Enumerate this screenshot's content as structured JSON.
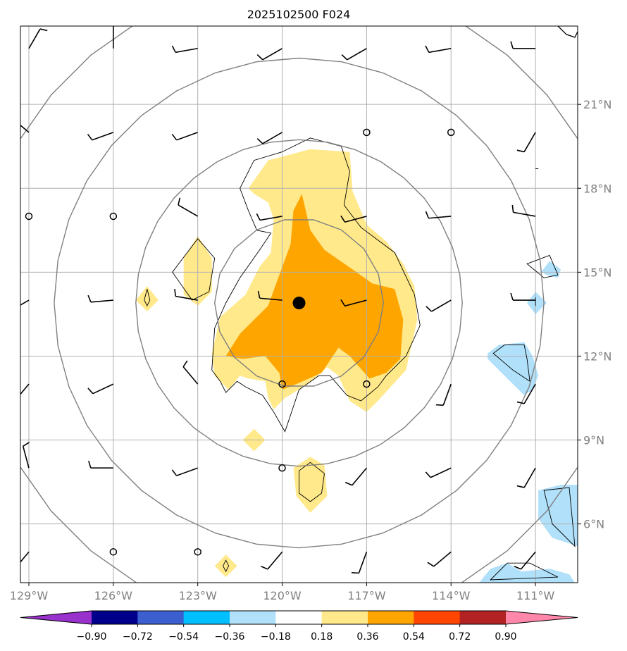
{
  "chart_data": {
    "type": "heatmap",
    "title": "2025102500 F024",
    "xlabel": "",
    "ylabel": "",
    "xlim": [
      -129.3,
      -109.5
    ],
    "ylim": [
      3.9,
      23.8
    ],
    "x_ticks": [
      -129,
      -126,
      -123,
      -120,
      -117,
      -114,
      -111
    ],
    "x_tick_labels": [
      "129°W",
      "126°W",
      "123°W",
      "120°W",
      "117°W",
      "114°W",
      "111°W"
    ],
    "y_ticks": [
      6,
      9,
      12,
      15,
      18,
      21
    ],
    "y_tick_labels": [
      "6°N",
      "9°N",
      "12°N",
      "15°N",
      "18°N",
      "21°N"
    ],
    "grid": true,
    "center": {
      "lon": -119.4,
      "lat": 13.9
    },
    "range_ring_radii_deg": [
      3,
      5.8,
      8.7,
      11.5
    ],
    "colorbar": {
      "levels": [
        -0.9,
        -0.72,
        -0.54,
        -0.36,
        -0.18,
        0.18,
        0.36,
        0.54,
        0.72,
        0.9
      ],
      "labels": [
        "−0.90",
        "−0.72",
        "−0.54",
        "−0.36",
        "−0.18",
        "0.18",
        "0.36",
        "0.54",
        "0.72",
        "0.90"
      ],
      "colors": [
        "#9932cc",
        "#00008b",
        "#3b5fcf",
        "#00bfff",
        "#b0e0fa",
        "#ffffff",
        "#ffe98a",
        "#ffa500",
        "#ff4500",
        "#b22222",
        "#ff88aa"
      ],
      "extend": "both"
    },
    "filled_regions": [
      {
        "level": 0.18,
        "color": "#ffe98a",
        "points": [
          [
            -121.2,
            18
          ],
          [
            -120.5,
            19
          ],
          [
            -119,
            19.4
          ],
          [
            -117.6,
            19.3
          ],
          [
            -117.5,
            17.9
          ],
          [
            -117,
            16.7
          ],
          [
            -116.3,
            16.1
          ],
          [
            -115.7,
            15.3
          ],
          [
            -115.3,
            14.5
          ],
          [
            -115.2,
            13.3
          ],
          [
            -115.6,
            11.5
          ],
          [
            -116.6,
            10.4
          ],
          [
            -117,
            10
          ],
          [
            -117.6,
            10.4
          ],
          [
            -118,
            11.3
          ],
          [
            -118.4,
            11.6
          ],
          [
            -119.1,
            11
          ],
          [
            -119.9,
            10.5
          ],
          [
            -120.3,
            10.1
          ],
          [
            -120.5,
            10.5
          ],
          [
            -120.6,
            11.1
          ],
          [
            -121.2,
            11.2
          ],
          [
            -121.5,
            11.3
          ],
          [
            -121.9,
            10.8
          ],
          [
            -122.4,
            11.3
          ],
          [
            -122.5,
            12.1
          ],
          [
            -122.2,
            13.4
          ],
          [
            -121.3,
            14.2
          ],
          [
            -120.8,
            15.2
          ],
          [
            -120.4,
            15.7
          ],
          [
            -120.3,
            16.9
          ],
          [
            -120.5,
            17.5
          ],
          [
            -121,
            17.8
          ]
        ]
      },
      {
        "level": 0.18,
        "color": "#ffe98a",
        "points": [
          [
            -123,
            16.3
          ],
          [
            -122.5,
            15.5
          ],
          [
            -122.5,
            14.3
          ],
          [
            -123,
            13.8
          ],
          [
            -123.5,
            14.2
          ],
          [
            -123.5,
            15.5
          ]
        ]
      },
      {
        "level": 0.18,
        "color": "#ffe98a",
        "points": [
          [
            -119,
            8.4
          ],
          [
            -118.5,
            8.1
          ],
          [
            -118.4,
            7
          ],
          [
            -119,
            6.4
          ],
          [
            -119.5,
            7
          ],
          [
            -119.6,
            8
          ]
        ]
      },
      {
        "level": 0.18,
        "color": "#ffe98a",
        "points": [
          [
            -121,
            9.4
          ],
          [
            -120.6,
            9
          ],
          [
            -121,
            8.6
          ],
          [
            -121.4,
            9
          ]
        ]
      },
      {
        "level": 0.18,
        "color": "#ffe98a",
        "points": [
          [
            -124.8,
            14.5
          ],
          [
            -124.4,
            14
          ],
          [
            -124.8,
            13.6
          ],
          [
            -125.2,
            14
          ]
        ]
      },
      {
        "level": 0.18,
        "color": "#ffe98a",
        "points": [
          [
            -122,
            4.9
          ],
          [
            -121.6,
            4.5
          ],
          [
            -122,
            4.1
          ],
          [
            -122.4,
            4.5
          ]
        ]
      },
      {
        "level": 0.36,
        "color": "#ffa500",
        "points": [
          [
            -119.3,
            17.8
          ],
          [
            -119,
            16.5
          ],
          [
            -118.5,
            15.8
          ],
          [
            -117.5,
            15.1
          ],
          [
            -116.8,
            14.6
          ],
          [
            -116,
            14.4
          ],
          [
            -115.7,
            13.3
          ],
          [
            -115.8,
            11.9
          ],
          [
            -116.3,
            11.4
          ],
          [
            -116.9,
            11.2
          ],
          [
            -117.6,
            12
          ],
          [
            -118,
            12.3
          ],
          [
            -118.6,
            11.4
          ],
          [
            -119.5,
            11
          ],
          [
            -120,
            10.8
          ],
          [
            -120.1,
            11.4
          ],
          [
            -120.6,
            12
          ],
          [
            -121.4,
            11.9
          ],
          [
            -122,
            12
          ],
          [
            -121.5,
            12.8
          ],
          [
            -120.5,
            13.8
          ],
          [
            -120.1,
            14.9
          ],
          [
            -119.7,
            16
          ],
          [
            -119.6,
            17.2
          ]
        ]
      }
    ],
    "contour_lines": [
      [
        [
          -121.5,
          18
        ],
        [
          -121,
          19
        ],
        [
          -120,
          19.3
        ],
        [
          -119,
          19.8
        ],
        [
          -117.9,
          19.5
        ],
        [
          -117.6,
          18.6
        ],
        [
          -117.8,
          17.4
        ],
        [
          -117.2,
          16.6
        ],
        [
          -116,
          15.7
        ],
        [
          -115.3,
          14.2
        ],
        [
          -115.1,
          13.1
        ],
        [
          -115.6,
          12
        ],
        [
          -116.3,
          11.3
        ],
        [
          -116.6,
          10.9
        ],
        [
          -117.2,
          10.4
        ],
        [
          -117.7,
          10.6
        ],
        [
          -118.3,
          11.3
        ],
        [
          -118.7,
          11.3
        ],
        [
          -119.4,
          10.8
        ],
        [
          -119.9,
          9.3
        ],
        [
          -120.3,
          10
        ],
        [
          -120.7,
          10.6
        ],
        [
          -121.3,
          10.9
        ],
        [
          -121.6,
          11.1
        ],
        [
          -122,
          10.7
        ],
        [
          -122.2,
          11.1
        ],
        [
          -122.5,
          11.5
        ],
        [
          -122.4,
          13
        ],
        [
          -122,
          13.9
        ],
        [
          -121.5,
          14.8
        ],
        [
          -120.8,
          15.8
        ],
        [
          -120.4,
          16.4
        ],
        [
          -120.9,
          16.5
        ],
        [
          -121.2,
          17.2
        ]
      ],
      [
        [
          -123,
          16.2
        ],
        [
          -122.4,
          15.5
        ],
        [
          -122.6,
          14.3
        ],
        [
          -123.2,
          14
        ],
        [
          -123.9,
          15
        ]
      ],
      [
        [
          -119,
          8.2
        ],
        [
          -118.5,
          7.8
        ],
        [
          -118.6,
          7.1
        ],
        [
          -119,
          6.8
        ],
        [
          -119.4,
          7.1
        ],
        [
          -119.4,
          7.9
        ]
      ],
      [
        [
          -124.8,
          14.4
        ],
        [
          -124.7,
          14
        ],
        [
          -124.8,
          13.8
        ],
        [
          -124.9,
          14
        ]
      ],
      [
        [
          -122,
          4.7
        ],
        [
          -121.9,
          4.5
        ],
        [
          -122,
          4.3
        ],
        [
          -122.1,
          4.5
        ]
      ],
      [
        [
          -112.1,
          12.4
        ],
        [
          -111.4,
          12.4
        ],
        [
          -111.3,
          11.9
        ],
        [
          -111.2,
          11.1
        ],
        [
          -111.8,
          11.5
        ],
        [
          -112.5,
          12.1
        ]
      ],
      [
        [
          -111.3,
          15.3
        ],
        [
          -110.5,
          15.6
        ],
        [
          -110.2,
          14.9
        ],
        [
          -110.7,
          14.8
        ]
      ],
      [
        [
          -110.7,
          7.2
        ],
        [
          -109.8,
          7.3
        ],
        [
          -109.6,
          5.2
        ],
        [
          -110.4,
          6
        ]
      ],
      [
        [
          -112.6,
          4
        ],
        [
          -112,
          4.6
        ],
        [
          -111.2,
          4.6
        ],
        [
          -110.2,
          4.1
        ]
      ],
      [
        [
          -111,
          14.1
        ],
        [
          -111,
          13.8
        ]
      ],
      [
        [
          -111,
          18.7
        ],
        [
          -110.9,
          18.7
        ]
      ]
    ],
    "negative_regions": [
      {
        "level": -0.18,
        "color": "#b0e0fa",
        "points": [
          [
            -112.7,
            12.1
          ],
          [
            -112.3,
            12.4
          ],
          [
            -111.4,
            12.5
          ],
          [
            -111.1,
            12
          ],
          [
            -110.9,
            11.3
          ],
          [
            -111.1,
            10.8
          ],
          [
            -111.4,
            10.6
          ],
          [
            -112,
            11.2
          ],
          [
            -112.7,
            11.9
          ]
        ]
      },
      {
        "level": -0.18,
        "color": "#b0e0fa",
        "points": [
          [
            -110.5,
            15.4
          ],
          [
            -110.1,
            15.1
          ],
          [
            -110.2,
            14.8
          ],
          [
            -110.6,
            14.9
          ],
          [
            -110.8,
            15
          ]
        ]
      },
      {
        "level": -0.18,
        "color": "#b0e0fa",
        "points": [
          [
            -111,
            14.3
          ],
          [
            -110.6,
            13.9
          ],
          [
            -111,
            13.5
          ],
          [
            -111.3,
            13.9
          ]
        ]
      },
      {
        "level": -0.18,
        "color": "#b0e0fa",
        "points": [
          [
            -110.9,
            7.2
          ],
          [
            -110.1,
            7.4
          ],
          [
            -109.5,
            7.4
          ],
          [
            -109.5,
            5.2
          ],
          [
            -110.4,
            5.5
          ],
          [
            -110.9,
            6.2
          ]
        ]
      },
      {
        "level": -0.18,
        "color": "#b0e0fa",
        "points": [
          [
            -112.6,
            4.4
          ],
          [
            -112,
            4.6
          ],
          [
            -111.5,
            4.3
          ],
          [
            -110.5,
            4.4
          ],
          [
            -109.8,
            4.2
          ],
          [
            -109.6,
            3.9
          ],
          [
            -113,
            3.9
          ]
        ]
      }
    ],
    "coastline": [
      [
        -110.2,
        23.8
      ],
      [
        -109.9,
        23.5
      ],
      [
        -109.6,
        23.4
      ],
      [
        -109.5,
        23.6
      ]
    ],
    "wind_barbs": [
      {
        "lon": -129,
        "lat": 23,
        "dir": 30,
        "speed": 10
      },
      {
        "lon": -126,
        "lat": 23,
        "dir": 360,
        "speed": 10
      },
      {
        "lon": -123,
        "lat": 23,
        "dir": 260,
        "speed": 10
      },
      {
        "lon": -120,
        "lat": 23,
        "dir": 240,
        "speed": 10
      },
      {
        "lon": -117,
        "lat": 23,
        "dir": 240,
        "speed": 10
      },
      {
        "lon": -114,
        "lat": 23,
        "dir": 260,
        "speed": 10
      },
      {
        "lon": -111,
        "lat": 23,
        "dir": 270,
        "speed": 10
      },
      {
        "lon": -129,
        "lat": 20,
        "dir": 310,
        "speed": 10
      },
      {
        "lon": -126,
        "lat": 20,
        "dir": 250,
        "speed": 10
      },
      {
        "lon": -123,
        "lat": 20,
        "dir": 250,
        "speed": 10
      },
      {
        "lon": -120,
        "lat": 20,
        "dir": 240,
        "speed": 10
      },
      {
        "lon": -117,
        "lat": 20,
        "calm": true
      },
      {
        "lon": -114,
        "lat": 20,
        "calm": true
      },
      {
        "lon": -111,
        "lat": 20,
        "dir": 210,
        "speed": 10
      },
      {
        "lon": -129,
        "lat": 17,
        "calm": true
      },
      {
        "lon": -126,
        "lat": 17,
        "calm": true
      },
      {
        "lon": -123,
        "lat": 17,
        "dir": 300,
        "speed": 10
      },
      {
        "lon": -120,
        "lat": 17,
        "dir": 260,
        "speed": 10
      },
      {
        "lon": -117,
        "lat": 17,
        "dir": 255,
        "speed": 10
      },
      {
        "lon": -114,
        "lat": 17,
        "dir": 265,
        "speed": 10
      },
      {
        "lon": -111,
        "lat": 17,
        "dir": 280,
        "speed": 10
      },
      {
        "lon": -129,
        "lat": 14,
        "dir": 240,
        "speed": 10
      },
      {
        "lon": -126,
        "lat": 14,
        "dir": 265,
        "speed": 10
      },
      {
        "lon": -123,
        "lat": 14,
        "dir": 280,
        "speed": 10
      },
      {
        "lon": -120,
        "lat": 14,
        "dir": 275,
        "speed": 10
      },
      {
        "lon": -117,
        "lat": 14,
        "dir": 255,
        "speed": 10
      },
      {
        "lon": -114,
        "lat": 14,
        "dir": 240,
        "speed": 10
      },
      {
        "lon": -111,
        "lat": 14,
        "dir": 270,
        "speed": 10
      },
      {
        "lon": -129,
        "lat": 11,
        "dir": 220,
        "speed": 10
      },
      {
        "lon": -126,
        "lat": 11,
        "dir": 245,
        "speed": 10
      },
      {
        "lon": -123,
        "lat": 11,
        "dir": 320,
        "speed": 10
      },
      {
        "lon": -120,
        "lat": 11,
        "calm": true
      },
      {
        "lon": -117,
        "lat": 11,
        "calm": true
      },
      {
        "lon": -114,
        "lat": 11,
        "dir": 200,
        "speed": 10
      },
      {
        "lon": -111,
        "lat": 11,
        "dir": 210,
        "speed": 10
      },
      {
        "lon": -129,
        "lat": 8,
        "dir": 345,
        "speed": 10
      },
      {
        "lon": -126,
        "lat": 8,
        "dir": 270,
        "speed": 10
      },
      {
        "lon": -123,
        "lat": 8,
        "dir": 250,
        "speed": 10
      },
      {
        "lon": -120,
        "lat": 8,
        "calm": true
      },
      {
        "lon": -117,
        "lat": 8,
        "dir": 220,
        "speed": 10
      },
      {
        "lon": -114,
        "lat": 8,
        "dir": 245,
        "speed": 10
      },
      {
        "lon": -111,
        "lat": 8,
        "dir": 210,
        "speed": 10
      },
      {
        "lon": -129,
        "lat": 5,
        "dir": 220,
        "speed": 10
      },
      {
        "lon": -126,
        "lat": 5,
        "calm": true
      },
      {
        "lon": -123,
        "lat": 5,
        "calm": true
      },
      {
        "lon": -120,
        "lat": 5,
        "dir": 220,
        "speed": 10
      },
      {
        "lon": -117,
        "lat": 5,
        "dir": 200,
        "speed": 10
      },
      {
        "lon": -114,
        "lat": 5,
        "dir": 230,
        "speed": 10
      },
      {
        "lon": -111,
        "lat": 5,
        "dir": 220,
        "speed": 10
      }
    ]
  }
}
